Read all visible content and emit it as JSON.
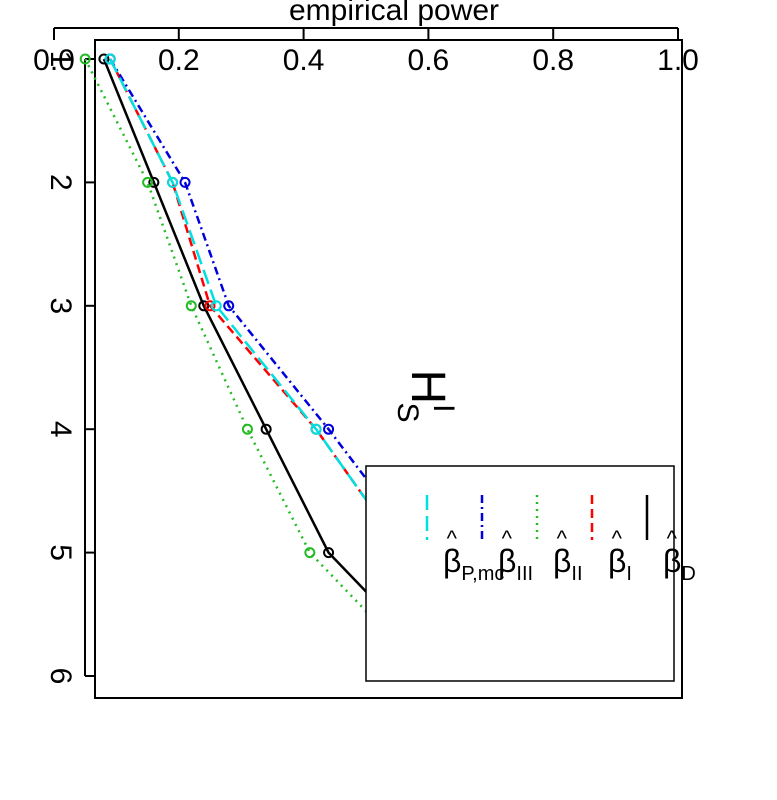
{
  "chart_data": {
    "type": "line",
    "rotation": "rotated 90 degrees clockwise (page shown sideways)",
    "title_main": "H",
    "title_sup": "I",
    "title_sub": "S",
    "xlabel": "",
    "ylabel": "empirical power",
    "x": [
      1,
      2,
      3,
      4,
      5,
      6
    ],
    "xticks": [
      "1",
      "2",
      "3",
      "4",
      "5",
      "6"
    ],
    "yticks": [
      "0.0",
      "0.2",
      "0.4",
      "0.6",
      "0.8",
      "1.0"
    ],
    "xlim": [
      0.9,
      6.1
    ],
    "ylim": [
      0,
      1.0
    ],
    "grid": false,
    "legend_position": "bottom-left",
    "series": [
      {
        "hat": "^",
        "name": "β",
        "sub": "D",
        "color": "#000000",
        "dash": "",
        "values": [
          0.08,
          0.16,
          0.24,
          0.34,
          0.44,
          0.63
        ]
      },
      {
        "hat": "^",
        "name": "β",
        "sub": "I",
        "color": "#ff0000",
        "dash": "9,5",
        "values": [
          0.09,
          0.19,
          0.25,
          0.42,
          0.56,
          0.69
        ]
      },
      {
        "hat": "^",
        "name": "β",
        "sub": "II",
        "color": "#22bb22",
        "dash": "2,5",
        "values": [
          0.05,
          0.15,
          0.22,
          0.31,
          0.41,
          0.6
        ]
      },
      {
        "hat": "^",
        "name": "β",
        "sub": "III",
        "color": "#0000dd",
        "dash": "8,4,2,4",
        "values": [
          0.09,
          0.21,
          0.28,
          0.44,
          0.59,
          0.73
        ]
      },
      {
        "hat": "^",
        "name": "β",
        "sub": "P,mc",
        "color": "#00e0e0",
        "dash": "15,6",
        "values": [
          0.09,
          0.19,
          0.26,
          0.42,
          0.56,
          0.69
        ]
      }
    ]
  }
}
